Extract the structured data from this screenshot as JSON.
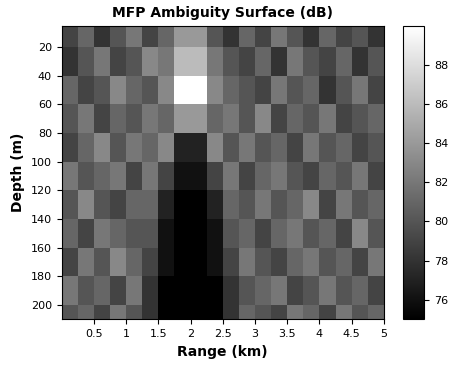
{
  "chart_data": {
    "type": "heatmap",
    "title": "MFP Ambiguity Surface (dB)",
    "x_label": "Range (km)",
    "y_label": "Depth (m)",
    "x": [
      0,
      0.25,
      0.5,
      0.75,
      1,
      1.25,
      1.5,
      1.75,
      2,
      2.25,
      2.5,
      2.75,
      3,
      3.25,
      3.5,
      3.75,
      4,
      4.25,
      4.5,
      4.75,
      5
    ],
    "y": [
      5,
      20,
      40,
      60,
      80,
      100,
      120,
      140,
      160,
      180,
      200,
      210
    ],
    "cells": [
      [
        79,
        81,
        78,
        80,
        82,
        79,
        81,
        84,
        84,
        80,
        78,
        81,
        79,
        82,
        80,
        78,
        81,
        79,
        80,
        78
      ],
      [
        78,
        80,
        82,
        79,
        80,
        83,
        82,
        86,
        86,
        82,
        80,
        79,
        81,
        78,
        82,
        80,
        79,
        81,
        78,
        80
      ],
      [
        81,
        79,
        80,
        83,
        81,
        80,
        83,
        90,
        90,
        83,
        81,
        80,
        79,
        82,
        80,
        81,
        78,
        80,
        82,
        79
      ],
      [
        80,
        82,
        79,
        81,
        80,
        82,
        81,
        84,
        84,
        81,
        82,
        80,
        83,
        79,
        81,
        80,
        82,
        79,
        80,
        81
      ],
      [
        79,
        81,
        83,
        80,
        82,
        81,
        83,
        77,
        77,
        83,
        80,
        82,
        80,
        81,
        79,
        82,
        80,
        81,
        79,
        80
      ],
      [
        82,
        80,
        81,
        82,
        79,
        82,
        79,
        76,
        76,
        79,
        82,
        79,
        81,
        82,
        80,
        79,
        81,
        80,
        82,
        79
      ],
      [
        80,
        83,
        80,
        79,
        81,
        81,
        77,
        75,
        75,
        77,
        81,
        80,
        82,
        80,
        81,
        83,
        79,
        82,
        80,
        81
      ],
      [
        81,
        79,
        82,
        81,
        80,
        80,
        76,
        75,
        75,
        76,
        80,
        81,
        79,
        81,
        82,
        80,
        81,
        79,
        83,
        80
      ],
      [
        79,
        82,
        80,
        83,
        81,
        79,
        76,
        75,
        75,
        76,
        79,
        82,
        80,
        79,
        81,
        82,
        80,
        81,
        79,
        82
      ],
      [
        82,
        80,
        81,
        79,
        82,
        78,
        75,
        75,
        75,
        75,
        78,
        80,
        81,
        82,
        79,
        80,
        82,
        80,
        81,
        79
      ],
      [
        80,
        81,
        79,
        82,
        80,
        78,
        75,
        75,
        75,
        75,
        78,
        81,
        80,
        79,
        82,
        81,
        79,
        82,
        80,
        81
      ]
    ],
    "xlim": [
      0,
      5
    ],
    "ylim": [
      210,
      5
    ],
    "xticks": [
      0.5,
      1,
      1.5,
      2,
      2.5,
      3,
      3.5,
      4,
      4.5,
      5
    ],
    "yticks": [
      20,
      40,
      60,
      80,
      100,
      120,
      140,
      160,
      180,
      200
    ],
    "colorbar_range": [
      75,
      90
    ],
    "colorbar_ticks": [
      76,
      78,
      80,
      82,
      84,
      86,
      88
    ],
    "color": "gray"
  }
}
